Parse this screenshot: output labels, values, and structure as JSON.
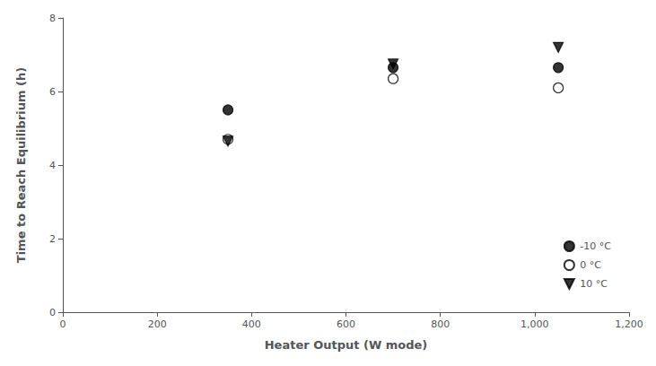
{
  "chart_data": {
    "type": "scatter",
    "xlabel": "Heater Output (W mode)",
    "ylabel": "Time to Reach Equilibrium (h)",
    "xlim": [
      0,
      1200
    ],
    "ylim": [
      0,
      8
    ],
    "xticks": [
      0,
      200,
      400,
      600,
      800,
      1000,
      1200
    ],
    "yticks": [
      0,
      2,
      4,
      6,
      8
    ],
    "grid": false,
    "legend": "lower right",
    "series": [
      {
        "name": "-10 °C",
        "x": [
          350,
          700,
          1050
        ],
        "values": [
          5.5,
          6.65,
          6.65
        ],
        "marker": "circle",
        "color": "black"
      },
      {
        "name": "0 °C",
        "x": [
          350,
          700,
          1050
        ],
        "values": [
          4.7,
          6.35,
          6.1
        ],
        "marker": "circle-open",
        "color": "black"
      },
      {
        "name": "10 °C",
        "x": [
          350,
          700,
          1050
        ],
        "values": [
          4.65,
          6.75,
          7.2
        ],
        "marker": "triangle-down",
        "color": "black"
      }
    ]
  }
}
